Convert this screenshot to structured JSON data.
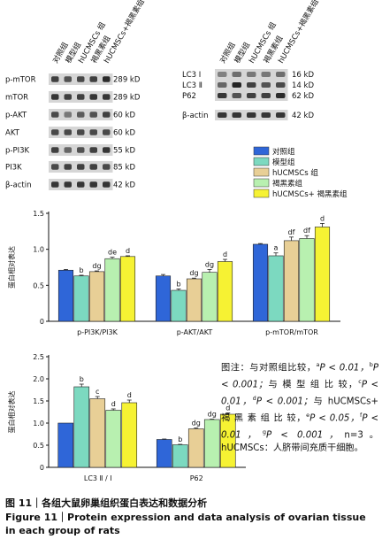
{
  "colors": {
    "group1": "#2f66d8",
    "group2": "#7cd9c0",
    "group3": "#e8cf96",
    "group4": "#b8f0b0",
    "group5": "#f6f233",
    "band": "#1a1a1a",
    "background_blot": "#d6d6d6"
  },
  "groups": [
    "对照组",
    "模型组",
    "hUCMSCs 组",
    "褐黑素组",
    "hUCMSCs+ 褐黑素组"
  ],
  "blot_left": {
    "lanes": [
      "对照组",
      "模型组",
      "hUCMSCs 组",
      "褐黑素组",
      "hUCMSCs+褐黑素组"
    ],
    "rows": [
      {
        "label": "p-mTOR",
        "kd": "289 kD"
      },
      {
        "label": "mTOR",
        "kd": "289 kD"
      },
      {
        "label": "p-AKT",
        "kd": "60 kD"
      },
      {
        "label": "AKT",
        "kd": "60 kD"
      },
      {
        "label": "p-PI3K",
        "kd": "55 kD"
      },
      {
        "label": "PI3K",
        "kd": "85 kD"
      },
      {
        "label": "β-actin",
        "kd": "42 kD"
      }
    ]
  },
  "blot_right": {
    "lanes": [
      "对照组",
      "模型组",
      "hUCMSCs 组",
      "褐黑素组",
      "hUCMSCs+褐黑素组"
    ],
    "rows": [
      {
        "label": "LC3 Ⅰ",
        "kd": "16 kD"
      },
      {
        "label": "LC3 Ⅱ",
        "kd": "14 kD"
      },
      {
        "label": "P62",
        "kd": "62 kD"
      },
      {
        "label": "β-actin",
        "kd": "42 kD"
      }
    ]
  },
  "legend": [
    "对照组",
    "模型组",
    "hUCMSCs 组",
    "褐黑素组",
    "hUCMSCs+ 褐黑素组"
  ],
  "chart_data": [
    {
      "type": "bar",
      "ylabel": "蛋白相对表达",
      "ylim": [
        0,
        1.5
      ],
      "yticks": [
        "0",
        "0.5",
        "1.0",
        "1.5"
      ],
      "categories": [
        "p-PI3K/PI3K",
        "p-AKT/AKT",
        "p-mTOR/mTOR"
      ],
      "series": [
        {
          "name": "对照组",
          "values": [
            0.71,
            0.63,
            1.07
          ],
          "errors": [
            0.01,
            0.02,
            0.01
          ],
          "labels": [
            "",
            "",
            ""
          ]
        },
        {
          "name": "模型组",
          "values": [
            0.63,
            0.43,
            0.91
          ],
          "errors": [
            0.01,
            0.02,
            0.04
          ],
          "labels": [
            "b",
            "b",
            "a"
          ]
        },
        {
          "name": "hUCMSCs 组",
          "values": [
            0.69,
            0.59,
            1.12
          ],
          "errors": [
            0.01,
            0.01,
            0.05
          ],
          "labels": [
            "dg",
            "dg",
            "df"
          ]
        },
        {
          "name": "褐黑素组",
          "values": [
            0.87,
            0.68,
            1.15
          ],
          "errors": [
            0.02,
            0.04,
            0.04
          ],
          "labels": [
            "de",
            "dg",
            "df"
          ]
        },
        {
          "name": "hUCMSCs+ 褐黑素组",
          "values": [
            0.9,
            0.83,
            1.31
          ],
          "errors": [
            0.01,
            0.03,
            0.05
          ],
          "labels": [
            "d",
            "d",
            "d"
          ]
        }
      ]
    },
    {
      "type": "bar",
      "ylabel": "蛋白相对表达",
      "ylim": [
        0,
        2.5
      ],
      "yticks": [
        "0",
        "0.5",
        "1.0",
        "1.5",
        "2.0",
        "2.5"
      ],
      "categories": [
        "LC3 Ⅱ / Ⅰ",
        "P62"
      ],
      "series": [
        {
          "name": "对照组",
          "values": [
            1.0,
            0.63
          ],
          "errors": [
            0.0,
            0.01
          ],
          "labels": [
            "",
            ""
          ]
        },
        {
          "name": "模型组",
          "values": [
            1.82,
            0.51
          ],
          "errors": [
            0.06,
            0.01
          ],
          "labels": [
            "b",
            "b"
          ]
        },
        {
          "name": "hUCMSCs 组",
          "values": [
            1.55,
            0.87
          ],
          "errors": [
            0.05,
            0.02
          ],
          "labels": [
            "c",
            "dg"
          ]
        },
        {
          "name": "褐黑素组",
          "values": [
            1.29,
            1.08
          ],
          "errors": [
            0.03,
            0.01
          ],
          "labels": [
            "d",
            "dg"
          ]
        },
        {
          "name": "hUCMSCs+ 褐黑素组",
          "values": [
            1.46,
            1.2
          ],
          "errors": [
            0.06,
            0.03
          ],
          "labels": [
            "d",
            "d"
          ]
        }
      ]
    }
  ],
  "note": {
    "intro": "图注：与对照组比较，",
    "a": "a",
    "a_text": "P < 0.01，",
    "b": "b",
    "b_text": "P < 0.001；",
    "mid1": "与 模 型 组 比 较，",
    "c": "c",
    "c_text": "P < 0.01，",
    "d": "d",
    "d_text": "P < 0.001；",
    "mid2": "与 hUCMSCs+ 褐 黑 素 组 比 较，",
    "e": "e",
    "e_text": "P < 0.05，",
    "f": "f",
    "f_text": "P < 0.01，",
    "g": "g",
    "g_text": "P < 0.001，",
    "n_text": "n=3。hUCMSCs：人脐带间充质干细胞。"
  },
  "caption": {
    "cn": "图 11｜各组大鼠卵巢组织蛋白表达和数据分析",
    "en": "Figure 11｜Protein expression and data analysis of ovarian tissue in each group of rats"
  }
}
